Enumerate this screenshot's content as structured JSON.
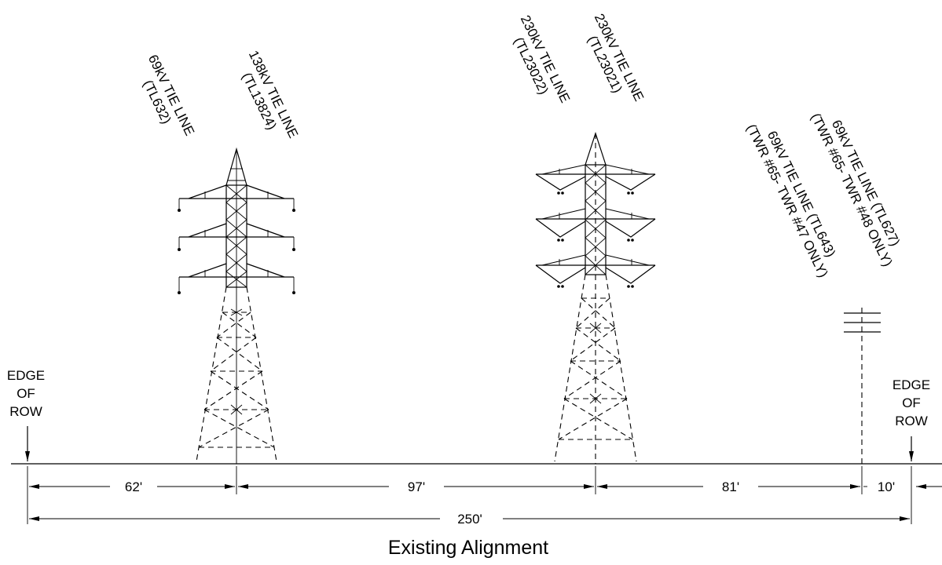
{
  "title": "Existing Alignment",
  "edge_left": {
    "line1": "EDGE",
    "line2": "OF",
    "line3": "ROW"
  },
  "edge_right": {
    "line1": "EDGE",
    "line2": "OF",
    "line3": "ROW"
  },
  "lines": [
    {
      "id": "tl632",
      "line1": "69kV TIE LINE",
      "line2": "(TL632)"
    },
    {
      "id": "tl13824",
      "line1": "138kV TIE LINE",
      "line2": "(TL13824)"
    },
    {
      "id": "tl23022",
      "line1": "230kV TIE LINE",
      "line2": "(TL23022)"
    },
    {
      "id": "tl23021",
      "line1": "230kV TIE LINE",
      "line2": "(TL23021)"
    },
    {
      "id": "tl643",
      "line1": "69kV TIE LINE (TL643)",
      "line2": "(TWR #65- TWR #47 ONLY)"
    },
    {
      "id": "tl627",
      "line1": "69kV TIE LINE (TL627)",
      "line2": "(TWR #65- TWR #48 ONLY)"
    }
  ],
  "dimensions": {
    "d1": "62'",
    "d2": "97'",
    "d3": "81'",
    "d4": "10'",
    "total": "250'"
  }
}
